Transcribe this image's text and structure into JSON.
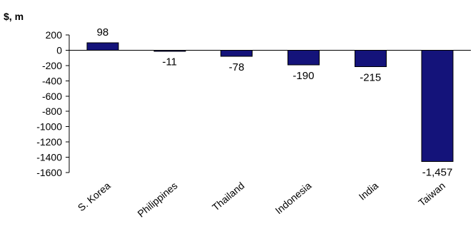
{
  "chart_data": {
    "type": "bar",
    "ylabel": "$, m",
    "categories": [
      "S. Korea",
      "Philippines",
      "Thailand",
      "Indonesia",
      "India",
      "Taiwan"
    ],
    "values": [
      98,
      -11,
      -78,
      -190,
      -215,
      -1457
    ],
    "data_labels": [
      "98",
      "-11",
      "-78",
      "-190",
      "-215",
      "-1,457"
    ],
    "ylim": [
      -1600,
      200
    ],
    "yticks": [
      200,
      0,
      -200,
      -400,
      -600,
      -800,
      -1000,
      -1200,
      -1400,
      -1600
    ],
    "grid": false,
    "legend": "none",
    "bar_color": "#14137a"
  }
}
